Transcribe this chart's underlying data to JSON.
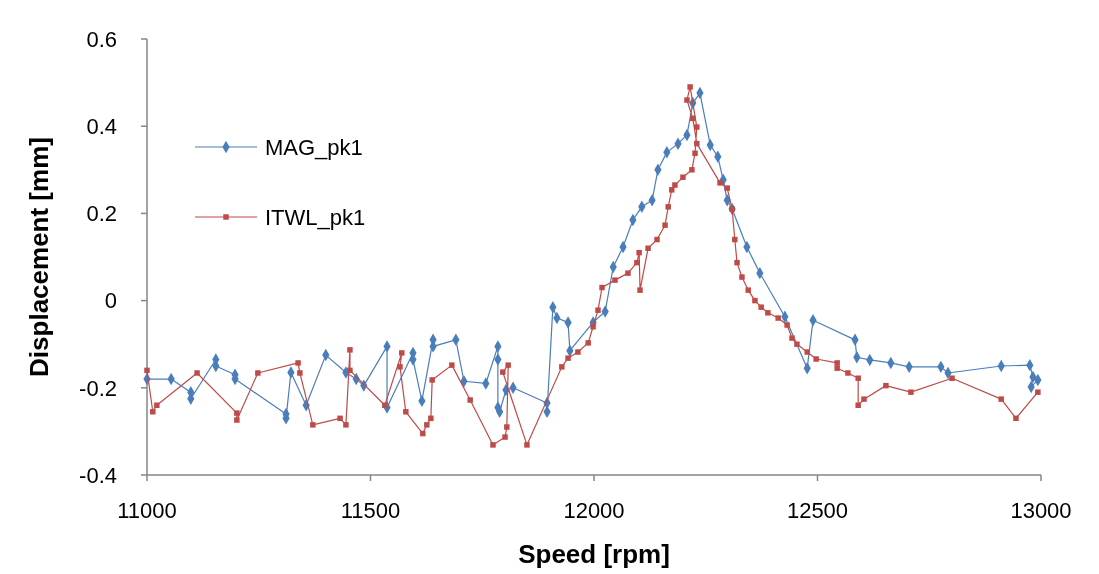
{
  "chart_data": {
    "type": "line",
    "xlabel": "Speed [rpm]",
    "ylabel": "Displacement [mm]",
    "xlim": [
      11000,
      13000
    ],
    "ylim": [
      -0.4,
      0.6
    ],
    "xticks": [
      11000,
      11500,
      12000,
      12500,
      13000
    ],
    "yticks": [
      -0.4,
      -0.2,
      0,
      0.2,
      0.4,
      0.6
    ],
    "grid": false,
    "legend": "top left",
    "line_style": "solid",
    "series": [
      {
        "name": "MAG_pk1",
        "color": "#4a7ebb",
        "marker": "diamond",
        "x": [
          11000,
          11054,
          11098,
          11098,
          11154,
          11154,
          11197,
          11197,
          11311,
          11311,
          11322,
          11356,
          11400,
          11445,
          11468,
          11485,
          11537,
          11537,
          11595,
          11595,
          11615,
          11640,
          11640,
          11691,
          11709,
          11758,
          11785,
          11785,
          11785,
          11789,
          11803,
          11819,
          11895,
          11895,
          11908,
          11917,
          11942,
          11946,
          11998,
          12025,
          12043,
          12065,
          12087,
          12107,
          12130,
          12143,
          12163,
          12188,
          12208,
          12221,
          12237,
          12260,
          12277,
          12289,
          12298,
          12309,
          12342,
          12371,
          12427,
          12477,
          12490,
          12584,
          12588,
          12617,
          12664,
          12705,
          12776,
          12792,
          12911,
          12975,
          12982,
          12978,
          12993
        ],
        "values": [
          -0.18,
          -0.18,
          -0.21,
          -0.225,
          -0.135,
          -0.15,
          -0.17,
          -0.18,
          -0.26,
          -0.27,
          -0.165,
          -0.24,
          -0.125,
          -0.165,
          -0.18,
          -0.195,
          -0.105,
          -0.245,
          -0.12,
          -0.135,
          -0.23,
          -0.09,
          -0.105,
          -0.09,
          -0.185,
          -0.19,
          -0.105,
          -0.135,
          -0.245,
          -0.255,
          -0.205,
          -0.2,
          -0.235,
          -0.255,
          -0.015,
          -0.04,
          -0.05,
          -0.115,
          -0.05,
          -0.025,
          0.077,
          0.123,
          0.185,
          0.215,
          0.23,
          0.3,
          0.34,
          0.36,
          0.38,
          0.453,
          0.476,
          0.357,
          0.33,
          0.277,
          0.23,
          0.21,
          0.123,
          0.063,
          -0.037,
          -0.155,
          -0.045,
          -0.09,
          -0.13,
          -0.136,
          -0.143,
          -0.152,
          -0.152,
          -0.166,
          -0.15,
          -0.148,
          -0.175,
          -0.198,
          -0.182
        ]
      },
      {
        "name": "ITWL_pk1",
        "color": "#be4b48",
        "marker": "square",
        "x": [
          11000,
          11013,
          11022,
          11112,
          11201,
          11201,
          11248,
          11338,
          11342,
          11371,
          11432,
          11445,
          11454,
          11454,
          11532,
          11570,
          11566,
          11579,
          11617,
          11626,
          11635,
          11638,
          11682,
          11723,
          11774,
          11801,
          11805,
          11808,
          11796,
          11850,
          11928,
          11942,
          11964,
          11987,
          11998,
          12009,
          12018,
          12047,
          12076,
          12096,
          12101,
          12103,
          12121,
          12141,
          12159,
          12166,
          12174,
          12181,
          12199,
          12219,
          12226,
          12230,
          12215,
          12208,
          12221,
          12230,
          12282,
          12298,
          12309,
          12315,
          12320,
          12331,
          12345,
          12360,
          12374,
          12389,
          12412,
          12432,
          12443,
          12454,
          12477,
          12497,
          12544,
          12544,
          12568,
          12591,
          12591,
          12604,
          12653,
          12709,
          12801,
          12911,
          12944,
          12993
        ],
        "values": [
          -0.16,
          -0.255,
          -0.24,
          -0.166,
          -0.258,
          -0.274,
          -0.166,
          -0.143,
          -0.166,
          -0.285,
          -0.27,
          -0.285,
          -0.113,
          -0.16,
          -0.24,
          -0.12,
          -0.152,
          -0.255,
          -0.305,
          -0.285,
          -0.27,
          -0.182,
          -0.148,
          -0.228,
          -0.331,
          -0.313,
          -0.29,
          -0.148,
          -0.164,
          -0.331,
          -0.152,
          -0.132,
          -0.118,
          -0.097,
          -0.06,
          -0.022,
          0.03,
          0.047,
          0.063,
          0.087,
          0.11,
          0.024,
          0.12,
          0.14,
          0.173,
          0.215,
          0.254,
          0.265,
          0.283,
          0.3,
          0.338,
          0.398,
          0.49,
          0.46,
          0.418,
          0.36,
          0.27,
          0.258,
          0.21,
          0.14,
          0.087,
          0.054,
          0.024,
          0,
          -0.015,
          -0.028,
          -0.04,
          -0.056,
          -0.086,
          -0.1,
          -0.118,
          -0.134,
          -0.143,
          -0.155,
          -0.166,
          -0.178,
          -0.24,
          -0.226,
          -0.195,
          -0.21,
          -0.178,
          -0.226,
          -0.27,
          -0.21
        ]
      }
    ]
  }
}
